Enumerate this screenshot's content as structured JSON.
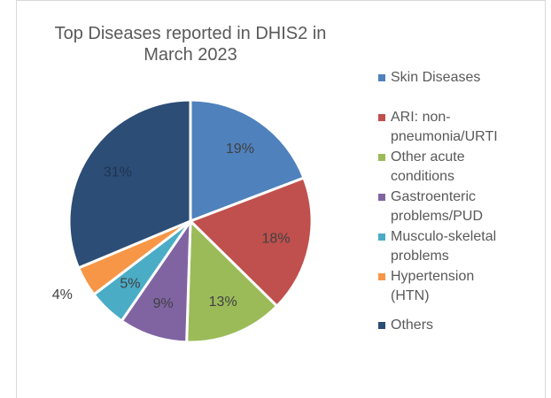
{
  "chart_data": {
    "type": "pie",
    "title": "Top Diseases reported in DHIS2 in March 2023",
    "categories": [
      "Skin Diseases",
      "ARI: non-pneumonia/URTI",
      "Other acute conditions",
      "Gastroenteric problems/PUD",
      "Musculo-skeletal problems",
      "Hypertension (HTN)",
      "Others"
    ],
    "values": [
      19,
      18,
      13,
      9,
      5,
      4,
      31
    ],
    "value_labels": [
      "19%",
      "18%",
      "13%",
      "9%",
      "5%",
      "4%",
      "31%"
    ],
    "colors": [
      "#4f81bd",
      "#c0504d",
      "#9bbb59",
      "#8064a2",
      "#4bacc6",
      "#f79646",
      "#2c4d75"
    ],
    "legend": "right"
  }
}
